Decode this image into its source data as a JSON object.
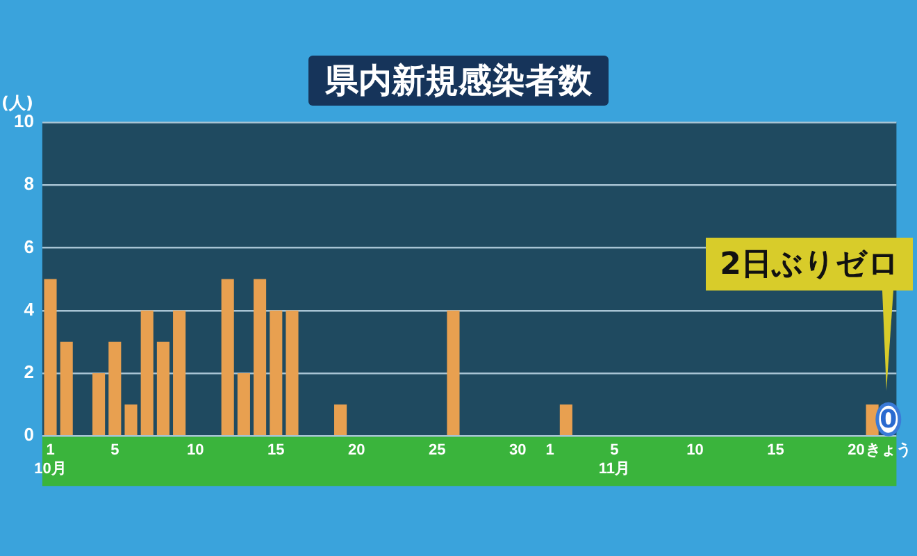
{
  "chart_data": {
    "type": "bar",
    "title": "県内新規感染者数",
    "ylabel": "(人)",
    "categories": [
      "1\n10月",
      null,
      null,
      null,
      "5",
      null,
      null,
      null,
      null,
      "10",
      null,
      null,
      null,
      null,
      "15",
      null,
      null,
      null,
      null,
      "20",
      null,
      null,
      null,
      null,
      "25",
      null,
      null,
      null,
      null,
      "30",
      null,
      "1",
      null,
      null,
      null,
      "5\n11月",
      null,
      null,
      null,
      null,
      "10",
      null,
      null,
      null,
      null,
      "15",
      null,
      null,
      null,
      null,
      "20",
      null,
      "きょう"
    ],
    "values": [
      5,
      3,
      0,
      2,
      3,
      1,
      4,
      3,
      4,
      0,
      0,
      5,
      2,
      5,
      4,
      4,
      0,
      0,
      1,
      0,
      0,
      0,
      0,
      0,
      0,
      4,
      0,
      0,
      0,
      0,
      0,
      0,
      1,
      0,
      0,
      0,
      0,
      0,
      0,
      0,
      0,
      0,
      0,
      0,
      0,
      0,
      0,
      0,
      0,
      0,
      0,
      1,
      0
    ],
    "value_labels": [
      null,
      null,
      null,
      null,
      null,
      null,
      null,
      null,
      null,
      null,
      null,
      null,
      null,
      null,
      null,
      null,
      null,
      null,
      null,
      null,
      null,
      null,
      null,
      null,
      null,
      null,
      null,
      null,
      null,
      null,
      null,
      null,
      null,
      null,
      null,
      null,
      null,
      null,
      null,
      null,
      null,
      null,
      null,
      null,
      null,
      null,
      null,
      null,
      null,
      null,
      null,
      null,
      "0"
    ],
    "color": "#e8a050",
    "ylim": [
      0,
      10
    ],
    "yticks": [
      0,
      2,
      4,
      6,
      8,
      10
    ],
    "grid": "y",
    "legend": false,
    "annotations": [
      "2日ぶりゼロ"
    ]
  }
}
